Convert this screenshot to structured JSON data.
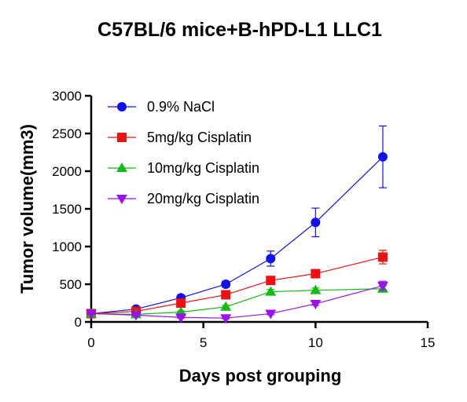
{
  "chart_data": {
    "type": "line",
    "title": "C57BL/6 mice+B-hPD-L1 LLC1",
    "xlabel": "Days post grouping",
    "ylabel": "Tumor volume(mm3)",
    "xlim": [
      0,
      15
    ],
    "ylim": [
      0,
      3000
    ],
    "x_ticks": [
      0,
      5,
      10,
      15
    ],
    "y_ticks": [
      0,
      500,
      1000,
      1500,
      2000,
      2500,
      3000
    ],
    "grid": false,
    "legend_position": "top-left",
    "series": [
      {
        "name": "0.9% NaCl",
        "marker": "circle",
        "color": "#1010ee",
        "x": [
          0,
          2,
          4,
          6,
          8,
          10,
          13
        ],
        "y": [
          110,
          170,
          320,
          500,
          840,
          1320,
          2190
        ],
        "error": [
          15,
          25,
          35,
          40,
          100,
          190,
          410
        ]
      },
      {
        "name": "5mg/kg Cisplatin",
        "marker": "square",
        "color": "#ee1111",
        "x": [
          0,
          2,
          4,
          6,
          8,
          10,
          13
        ],
        "y": [
          110,
          140,
          250,
          360,
          550,
          640,
          860
        ],
        "error": [
          15,
          20,
          30,
          35,
          45,
          40,
          90
        ]
      },
      {
        "name": "10mg/kg Cisplatin",
        "marker": "triangle-up",
        "color": "#11bb11",
        "x": [
          0,
          2,
          4,
          6,
          8,
          10,
          13
        ],
        "y": [
          110,
          100,
          130,
          200,
          400,
          420,
          440
        ],
        "error": [
          10,
          10,
          15,
          20,
          30,
          30,
          40
        ]
      },
      {
        "name": "20mg/kg Cisplatin",
        "marker": "triangle-down",
        "color": "#9911ee",
        "x": [
          0,
          2,
          4,
          6,
          8,
          10,
          13
        ],
        "y": [
          110,
          90,
          60,
          50,
          110,
          240,
          480
        ],
        "error": [
          10,
          10,
          10,
          10,
          15,
          20,
          60
        ]
      }
    ]
  }
}
